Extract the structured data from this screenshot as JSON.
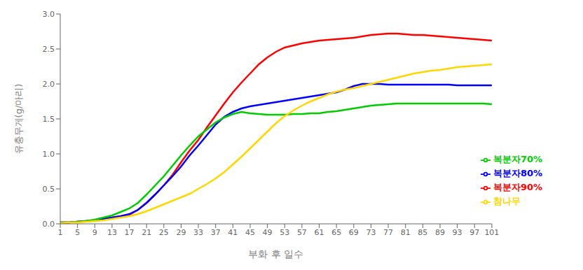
{
  "chart_data": {
    "type": "line",
    "xlabel": "부화 후 일수",
    "ylabel": "유충무게(g/마리)",
    "x": [
      1,
      3,
      5,
      7,
      9,
      11,
      13,
      15,
      17,
      19,
      21,
      23,
      25,
      27,
      29,
      31,
      33,
      35,
      37,
      39,
      41,
      43,
      45,
      47,
      49,
      51,
      53,
      55,
      57,
      59,
      61,
      63,
      65,
      67,
      69,
      71,
      73,
      75,
      77,
      79,
      81,
      83,
      85,
      87,
      89,
      91,
      93,
      95,
      97,
      99,
      101
    ],
    "series": [
      {
        "name": "복분자90%",
        "color": "#ff0000",
        "values": [
          0.02,
          0.02,
          0.03,
          0.04,
          0.05,
          0.07,
          0.09,
          0.11,
          0.13,
          0.2,
          0.3,
          0.42,
          0.55,
          0.7,
          0.88,
          1.05,
          1.2,
          1.38,
          1.55,
          1.72,
          1.88,
          2.02,
          2.15,
          2.28,
          2.38,
          2.46,
          2.52,
          2.55,
          2.58,
          2.6,
          2.62,
          2.63,
          2.64,
          2.65,
          2.66,
          2.68,
          2.7,
          2.71,
          2.72,
          2.72,
          2.71,
          2.7,
          2.7,
          2.69,
          2.68,
          2.67,
          2.66,
          2.65,
          2.64,
          2.63,
          2.62
        ]
      },
      {
        "name": "복분자80%",
        "color": "#0000ff",
        "values": [
          0.02,
          0.02,
          0.03,
          0.04,
          0.05,
          0.07,
          0.09,
          0.11,
          0.14,
          0.2,
          0.3,
          0.42,
          0.55,
          0.68,
          0.82,
          0.98,
          1.12,
          1.27,
          1.42,
          1.53,
          1.6,
          1.65,
          1.68,
          1.7,
          1.72,
          1.74,
          1.76,
          1.78,
          1.8,
          1.82,
          1.84,
          1.86,
          1.88,
          1.92,
          1.97,
          2.0,
          2.0,
          2.0,
          1.99,
          1.99,
          1.99,
          1.99,
          1.99,
          1.99,
          1.99,
          1.99,
          1.98,
          1.98,
          1.98,
          1.98,
          1.98
        ]
      },
      {
        "name": "복분자70%",
        "color": "#00cc00",
        "values": [
          0.02,
          0.02,
          0.03,
          0.04,
          0.06,
          0.09,
          0.12,
          0.17,
          0.22,
          0.3,
          0.42,
          0.55,
          0.68,
          0.83,
          0.98,
          1.12,
          1.25,
          1.35,
          1.45,
          1.52,
          1.57,
          1.6,
          1.58,
          1.57,
          1.56,
          1.56,
          1.56,
          1.57,
          1.57,
          1.58,
          1.58,
          1.6,
          1.61,
          1.63,
          1.65,
          1.67,
          1.69,
          1.7,
          1.71,
          1.72,
          1.72,
          1.72,
          1.72,
          1.72,
          1.72,
          1.72,
          1.72,
          1.72,
          1.72,
          1.72,
          1.71
        ]
      },
      {
        "name": "참나무",
        "color": "#ffd700",
        "values": [
          0.01,
          0.02,
          0.02,
          0.03,
          0.04,
          0.05,
          0.07,
          0.09,
          0.11,
          0.14,
          0.18,
          0.23,
          0.28,
          0.33,
          0.38,
          0.43,
          0.5,
          0.57,
          0.65,
          0.74,
          0.85,
          0.96,
          1.08,
          1.2,
          1.32,
          1.44,
          1.54,
          1.62,
          1.69,
          1.75,
          1.8,
          1.85,
          1.89,
          1.92,
          1.94,
          1.97,
          2.0,
          2.03,
          2.06,
          2.09,
          2.12,
          2.15,
          2.17,
          2.19,
          2.2,
          2.22,
          2.24,
          2.25,
          2.26,
          2.27,
          2.28
        ]
      }
    ],
    "xlim": [
      1,
      101
    ],
    "xticks": [
      1,
      5,
      9,
      13,
      17,
      21,
      25,
      29,
      33,
      37,
      41,
      45,
      49,
      53,
      57,
      61,
      65,
      69,
      73,
      77,
      81,
      85,
      89,
      93,
      97,
      101
    ],
    "ylim": [
      0.0,
      3.0
    ],
    "yticks": [
      {
        "value": 0,
        "label": "0.0"
      },
      0.5,
      {
        "value": 1,
        "label": "1.0"
      },
      1.5,
      {
        "value": 2,
        "label": "2.0"
      },
      2.5,
      {
        "value": 3,
        "label": "3.0"
      }
    ],
    "grid": false,
    "legend": "lower right"
  }
}
